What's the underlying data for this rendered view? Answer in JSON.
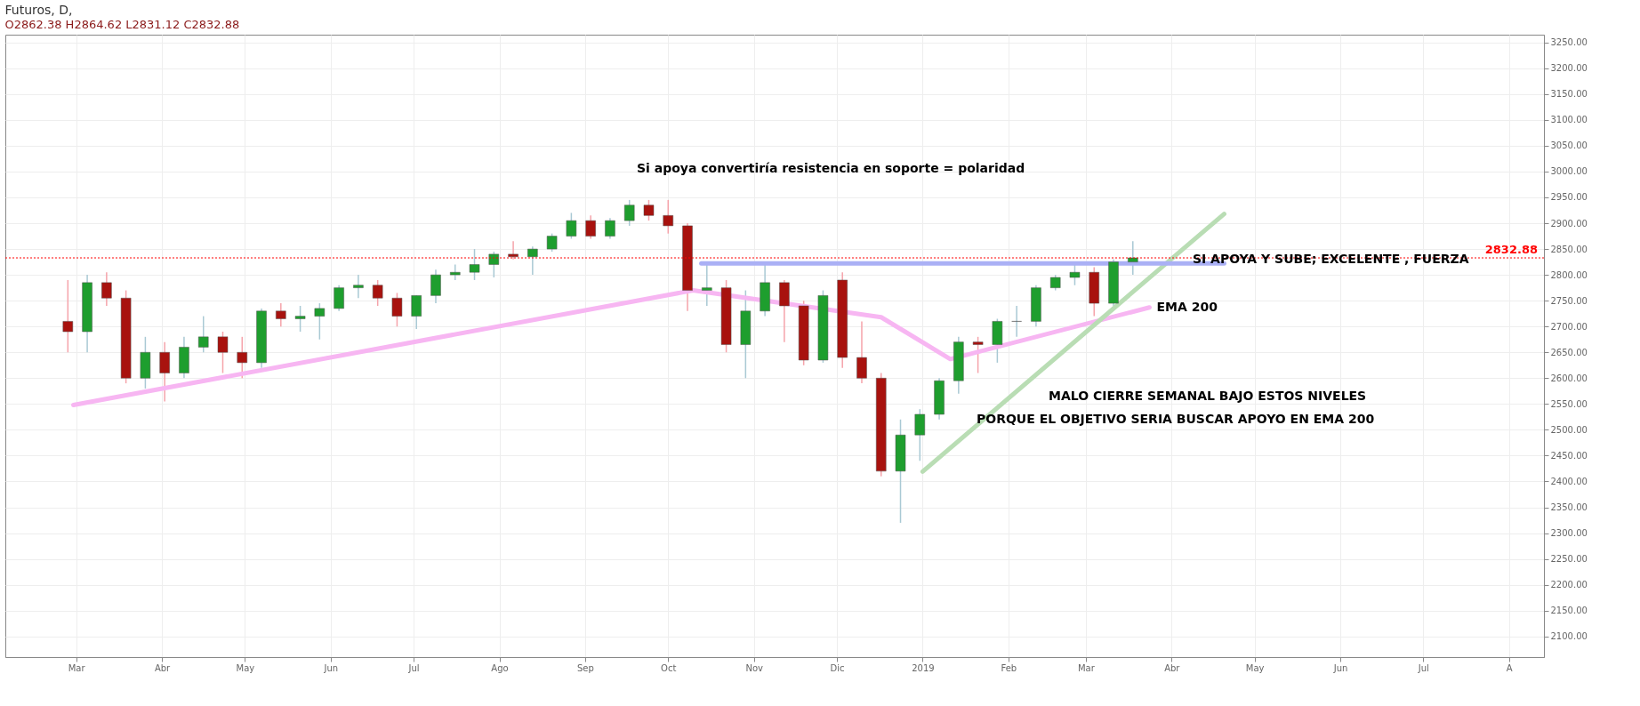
{
  "chart_data": {
    "type": "candlestick",
    "title": "Futuros, D,",
    "x": [
      "2018-02-26",
      "2018-03-05",
      "2018-03-12",
      "2018-03-19",
      "2018-03-26",
      "2018-04-02",
      "2018-04-09",
      "2018-04-16",
      "2018-04-23",
      "2018-04-30",
      "2018-05-07",
      "2018-05-14",
      "2018-05-21",
      "2018-05-28",
      "2018-06-04",
      "2018-06-11",
      "2018-06-18",
      "2018-06-25",
      "2018-07-02",
      "2018-07-09",
      "2018-07-16",
      "2018-07-23",
      "2018-07-30",
      "2018-08-06",
      "2018-08-13",
      "2018-08-20",
      "2018-08-27",
      "2018-09-03",
      "2018-09-10",
      "2018-09-17",
      "2018-09-24",
      "2018-10-01",
      "2018-10-08",
      "2018-10-15",
      "2018-10-22",
      "2018-10-29",
      "2018-11-05",
      "2018-11-12",
      "2018-11-19",
      "2018-11-26",
      "2018-12-03",
      "2018-12-10",
      "2018-12-17",
      "2018-12-24",
      "2018-12-31",
      "2019-01-07",
      "2019-01-14",
      "2019-01-21",
      "2019-01-28",
      "2019-02-04",
      "2019-02-11",
      "2019-02-18",
      "2019-02-25",
      "2019-03-04",
      "2019-03-11",
      "2019-03-18"
    ],
    "ohlc": [
      [
        2710,
        2790,
        2650,
        2690
      ],
      [
        2690,
        2800,
        2650,
        2785
      ],
      [
        2785,
        2805,
        2740,
        2755
      ],
      [
        2755,
        2770,
        2590,
        2600
      ],
      [
        2600,
        2680,
        2580,
        2650
      ],
      [
        2650,
        2670,
        2555,
        2610
      ],
      [
        2610,
        2680,
        2600,
        2660
      ],
      [
        2660,
        2720,
        2650,
        2680
      ],
      [
        2680,
        2690,
        2610,
        2650
      ],
      [
        2650,
        2680,
        2600,
        2630
      ],
      [
        2630,
        2735,
        2620,
        2730
      ],
      [
        2730,
        2745,
        2700,
        2715
      ],
      [
        2715,
        2740,
        2690,
        2720
      ],
      [
        2720,
        2745,
        2675,
        2735
      ],
      [
        2735,
        2780,
        2730,
        2775
      ],
      [
        2775,
        2800,
        2755,
        2780
      ],
      [
        2780,
        2790,
        2740,
        2755
      ],
      [
        2755,
        2765,
        2700,
        2720
      ],
      [
        2720,
        2760,
        2695,
        2760
      ],
      [
        2760,
        2810,
        2745,
        2800
      ],
      [
        2800,
        2820,
        2790,
        2805
      ],
      [
        2805,
        2850,
        2790,
        2820
      ],
      [
        2820,
        2845,
        2795,
        2840
      ],
      [
        2840,
        2865,
        2830,
        2835
      ],
      [
        2835,
        2855,
        2800,
        2850
      ],
      [
        2850,
        2880,
        2845,
        2875
      ],
      [
        2875,
        2920,
        2870,
        2905
      ],
      [
        2905,
        2915,
        2870,
        2875
      ],
      [
        2875,
        2910,
        2870,
        2905
      ],
      [
        2905,
        2945,
        2895,
        2935
      ],
      [
        2935,
        2945,
        2905,
        2915
      ],
      [
        2915,
        2945,
        2880,
        2895
      ],
      [
        2895,
        2900,
        2730,
        2770
      ],
      [
        2770,
        2820,
        2740,
        2775
      ],
      [
        2775,
        2790,
        2650,
        2665
      ],
      [
        2665,
        2770,
        2600,
        2730
      ],
      [
        2730,
        2820,
        2720,
        2785
      ],
      [
        2785,
        2790,
        2670,
        2740
      ],
      [
        2740,
        2750,
        2625,
        2635
      ],
      [
        2635,
        2770,
        2630,
        2760
      ],
      [
        2790,
        2805,
        2620,
        2640
      ],
      [
        2640,
        2710,
        2590,
        2600
      ],
      [
        2600,
        2610,
        2410,
        2420
      ],
      [
        2420,
        2520,
        2320,
        2490
      ],
      [
        2490,
        2540,
        2440,
        2530
      ],
      [
        2530,
        2600,
        2520,
        2595
      ],
      [
        2595,
        2680,
        2570,
        2670
      ],
      [
        2670,
        2680,
        2610,
        2665
      ],
      [
        2665,
        2715,
        2630,
        2710
      ],
      [
        2710,
        2740,
        2680,
        2710
      ],
      [
        2710,
        2780,
        2700,
        2775
      ],
      [
        2775,
        2800,
        2770,
        2795
      ],
      [
        2795,
        2820,
        2780,
        2805
      ],
      [
        2805,
        2815,
        2720,
        2745
      ],
      [
        2745,
        2830,
        2740,
        2825
      ],
      [
        2825,
        2865,
        2800,
        2832.88
      ]
    ],
    "series": [
      {
        "type": "line",
        "color": "#f7b6f2",
        "x": [
          "2018-02-28",
          "2018-10-10",
          "2018-12-17",
          "2019-01-11",
          "2019-03-24"
        ],
        "values": [
          2548,
          2770,
          2718,
          2637,
          2737
        ]
      },
      {
        "type": "line",
        "color": "#b9ddb4",
        "x": [
          "2019-01-01",
          "2019-04-20"
        ],
        "values": [
          2419,
          2918
        ]
      },
      {
        "type": "line",
        "color": "#aab0f5",
        "x": [
          "2018-10-13",
          "2019-04-20"
        ],
        "values": [
          2822,
          2822
        ]
      }
    ],
    "ref_lines": [
      {
        "axis": "y",
        "value": 2832.88,
        "label": "2832.88",
        "color": "#ff0000",
        "line_style": "dotted"
      }
    ],
    "annotations": [
      "O2862.38 H2864.62 L2831.12 C2832.88",
      "Si apoya convertiría resistencia en soporte = polaridad",
      {
        "text": "SI APOYA Y SUBE; EXCELENTE , FUERZA",
        "x": "2019-04-06",
        "y": 2830
      },
      {
        "text": "EMA 200",
        "x": "2019-03-24",
        "y": 2737
      },
      "MALO CIERRE SEMANAL  BAJO ESTOS NIVELES",
      "PORQUE EL OBJETIVO SERIA BUSCAR APOYO EN EMA 200"
    ],
    "xlim": [
      "2018-02-05",
      "2019-08-12"
    ],
    "xticks": [
      {
        "value": "2018-03-01",
        "label": "Mar"
      },
      {
        "value": "2018-04-01",
        "label": "Abr"
      },
      {
        "value": "2018-05-01",
        "label": "May"
      },
      {
        "value": "2018-06-01",
        "label": "Jun"
      },
      {
        "value": "2018-07-01",
        "label": "Jul"
      },
      {
        "value": "2018-08-01",
        "label": "Ago"
      },
      {
        "value": "2018-09-01",
        "label": "Sep"
      },
      {
        "value": "2018-10-01",
        "label": "Oct"
      },
      {
        "value": "2018-11-01",
        "label": "Nov"
      },
      {
        "value": "2018-12-01",
        "label": "Dic"
      },
      {
        "value": "2019-01-01",
        "label": "2019"
      },
      {
        "value": "2019-02-01",
        "label": "Feb"
      },
      {
        "value": "2019-03-01",
        "label": "Mar"
      },
      {
        "value": "2019-04-01",
        "label": "Abr"
      },
      {
        "value": "2019-05-01",
        "label": "May"
      },
      {
        "value": "2019-06-01",
        "label": "Jun"
      },
      {
        "value": "2019-07-01",
        "label": "Jul"
      },
      {
        "value": "2019-08-01",
        "label": "A"
      }
    ],
    "ylim": [
      2060,
      3265
    ],
    "yticks": [
      {
        "value": 2100,
        "label": "2100.00"
      },
      {
        "value": 2150,
        "label": "2150.00"
      },
      {
        "value": 2200,
        "label": "2200.00"
      },
      {
        "value": 2250,
        "label": "2250.00"
      },
      {
        "value": 2300,
        "label": "2300.00"
      },
      {
        "value": 2350,
        "label": "2350.00"
      },
      {
        "value": 2400,
        "label": "2400.00"
      },
      {
        "value": 2450,
        "label": "2450.00"
      },
      {
        "value": 2500,
        "label": "2500.00"
      },
      {
        "value": 2550,
        "label": "2550.00"
      },
      {
        "value": 2600,
        "label": "2600.00"
      },
      {
        "value": 2650,
        "label": "2650.00"
      },
      {
        "value": 2700,
        "label": "2700.00"
      },
      {
        "value": 2750,
        "label": "2750.00"
      },
      {
        "value": 2800,
        "label": "2800.00"
      },
      {
        "value": 2850,
        "label": "2850.00"
      },
      {
        "value": 2900,
        "label": "2900.00"
      },
      {
        "value": 2950,
        "label": "2950.00"
      },
      {
        "value": 3000,
        "label": "3000.00"
      },
      {
        "value": 3050,
        "label": "3050.00"
      },
      {
        "value": 3100,
        "label": "3100.00"
      },
      {
        "value": 3150,
        "label": "3150.00"
      },
      {
        "value": 3200,
        "label": "3200.00"
      },
      {
        "value": 3250,
        "label": "3250.00"
      }
    ],
    "grid": true
  }
}
